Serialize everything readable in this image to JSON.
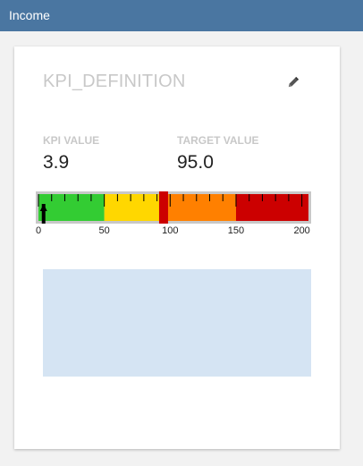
{
  "window": {
    "title": "Income"
  },
  "card": {
    "title": "KPI_DEFINITION",
    "kpi_label": "KPI VALUE",
    "kpi_value": "3.9",
    "target_label": "TARGET VALUE",
    "target_value": "95.0",
    "edit_icon": "pencil-icon"
  },
  "gauge": {
    "min": 0,
    "max": 205,
    "kpi": 3.9,
    "target": 95.0,
    "ranges": [
      {
        "from": 0,
        "to": 50,
        "color": "#33cc33"
      },
      {
        "from": 50,
        "to": 93,
        "color": "#ffd700"
      },
      {
        "from": 97,
        "to": 150,
        "color": "#ff8000"
      },
      {
        "from": 150,
        "to": 205,
        "color": "#cc0000"
      }
    ],
    "target_color": "#cc0000",
    "frame_color": "#c8c8c8",
    "tick_step": 10,
    "labels": [
      "0",
      "50",
      "100",
      "150",
      "200"
    ]
  }
}
